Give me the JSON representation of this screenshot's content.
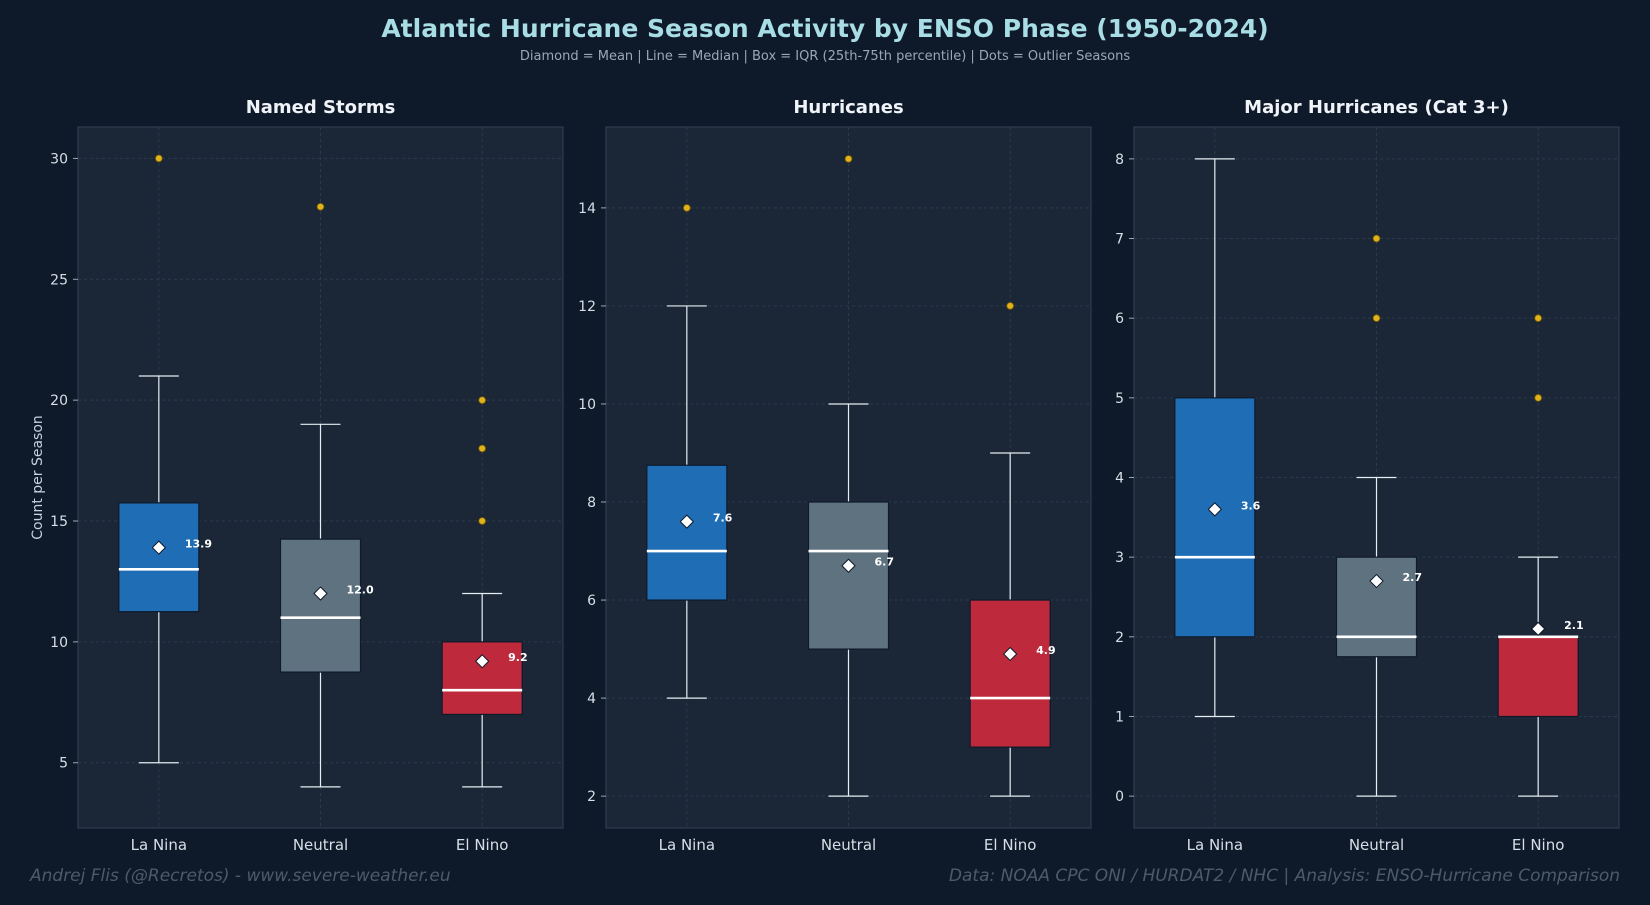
{
  "title": "Atlantic Hurricane Season Activity by ENSO Phase (1950-2024)",
  "subtitle": "Diamond = Mean  |  Line = Median  |  Box = IQR (25th-75th percentile)  |  Dots = Outlier Seasons",
  "footer_left": "Andrej Flis (@Recretos) - www.severe-weather.eu",
  "footer_right": "Data: NOAA CPC ONI / HURDAT2 / NHC  |  Analysis: ENSO-Hurricane Comparison",
  "colors": {
    "background": "#0e1a2a",
    "panel": "#1b2737",
    "la_nina": "#1f6db5",
    "neutral": "#5e7280",
    "el_nino": "#be2a3b",
    "outlier": "#e0b21c",
    "median": "#ffffff"
  },
  "chart_data": [
    {
      "type": "box",
      "title": "Named Storms",
      "ylabel": "Count per Season",
      "xlabel": "",
      "ylim": [
        2.3,
        31.3
      ],
      "yticks": [
        5,
        10,
        15,
        20,
        25,
        30
      ],
      "grid": true,
      "categories": [
        "La Nina",
        "Neutral",
        "El Nino"
      ],
      "boxes": [
        {
          "category": "La Nina",
          "whisker_low": 5,
          "q1": 11.25,
          "median": 13,
          "q3": 15.75,
          "whisker_high": 21,
          "mean": 13.9,
          "mean_label": "13.9",
          "outliers": [
            30
          ]
        },
        {
          "category": "Neutral",
          "whisker_low": 4,
          "q1": 8.75,
          "median": 11,
          "q3": 14.25,
          "whisker_high": 19,
          "mean": 12.0,
          "mean_label": "12.0",
          "outliers": [
            28
          ]
        },
        {
          "category": "El Nino",
          "whisker_low": 4,
          "q1": 7,
          "median": 8,
          "q3": 10,
          "whisker_high": 12,
          "mean": 9.2,
          "mean_label": "9.2",
          "outliers": [
            20,
            18,
            15
          ]
        }
      ]
    },
    {
      "type": "box",
      "title": "Hurricanes",
      "ylabel": "",
      "xlabel": "",
      "ylim": [
        1.35,
        15.65
      ],
      "yticks": [
        2,
        4,
        6,
        8,
        10,
        12,
        14
      ],
      "grid": true,
      "categories": [
        "La Nina",
        "Neutral",
        "El Nino"
      ],
      "boxes": [
        {
          "category": "La Nina",
          "whisker_low": 4,
          "q1": 6,
          "median": 7,
          "q3": 8.75,
          "whisker_high": 12,
          "mean": 7.6,
          "mean_label": "7.6",
          "outliers": [
            14
          ]
        },
        {
          "category": "Neutral",
          "whisker_low": 2,
          "q1": 5,
          "median": 7,
          "q3": 8,
          "whisker_high": 10,
          "mean": 6.7,
          "mean_label": "6.7",
          "outliers": [
            15
          ]
        },
        {
          "category": "El Nino",
          "whisker_low": 2,
          "q1": 3,
          "median": 4,
          "q3": 6,
          "whisker_high": 9,
          "mean": 4.9,
          "mean_label": "4.9",
          "outliers": [
            12
          ]
        }
      ]
    },
    {
      "type": "box",
      "title": "Major Hurricanes (Cat 3+)",
      "ylabel": "",
      "xlabel": "",
      "ylim": [
        -0.4,
        8.4
      ],
      "yticks": [
        0,
        1,
        2,
        3,
        4,
        5,
        6,
        7,
        8
      ],
      "grid": true,
      "categories": [
        "La Nina",
        "Neutral",
        "El Nino"
      ],
      "boxes": [
        {
          "category": "La Nina",
          "whisker_low": 1,
          "q1": 2,
          "median": 3,
          "q3": 5,
          "whisker_high": 8,
          "mean": 3.6,
          "mean_label": "3.6",
          "outliers": []
        },
        {
          "category": "Neutral",
          "whisker_low": 0,
          "q1": 1.75,
          "median": 2,
          "q3": 3,
          "whisker_high": 4,
          "mean": 2.7,
          "mean_label": "2.7",
          "outliers": [
            7,
            6
          ]
        },
        {
          "category": "El Nino",
          "whisker_low": 0,
          "q1": 1,
          "median": 2,
          "q3": 2,
          "whisker_high": 3,
          "mean": 2.1,
          "mean_label": "2.1",
          "outliers": [
            6,
            5
          ]
        }
      ]
    }
  ]
}
